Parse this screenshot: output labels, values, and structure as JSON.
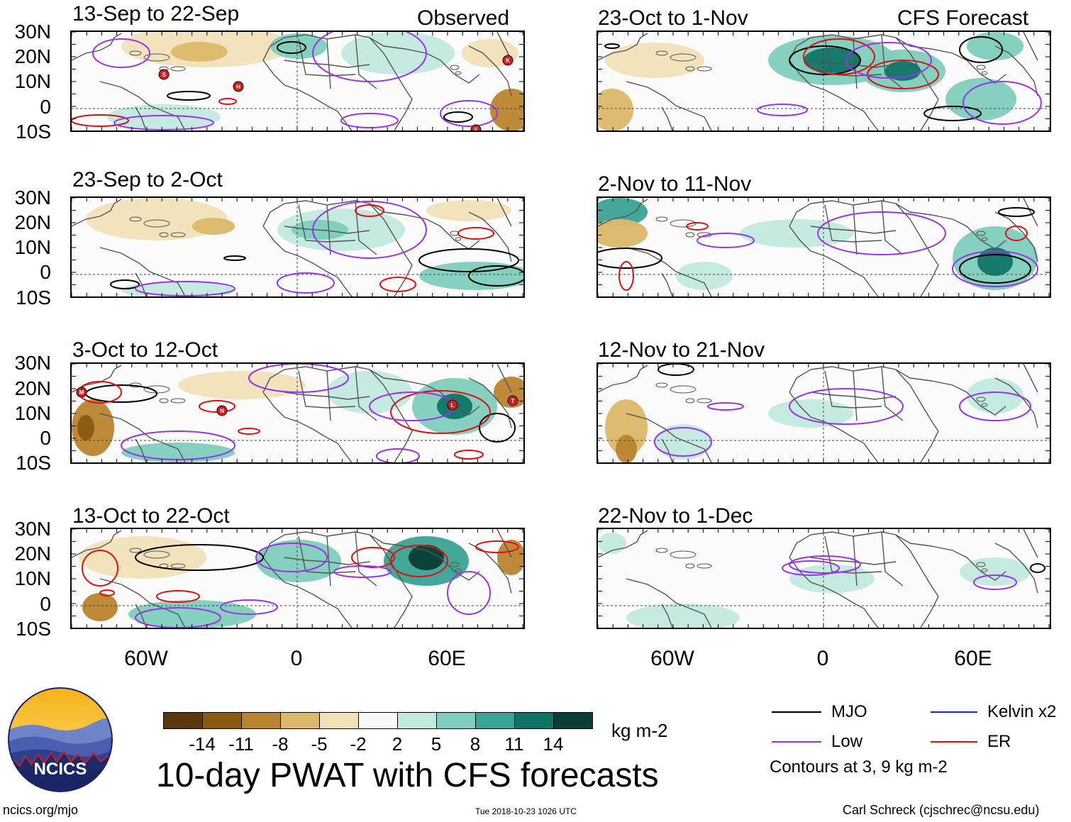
{
  "title": "10-day PWAT with CFS forecasts",
  "footer": {
    "url": "ncics.org/mjo",
    "timestamp": "Tue 2018-10-23 1026 UTC",
    "credit": "Carl Schreck (cjschrec@ncsu.edu)"
  },
  "logo": {
    "text": "NCICS"
  },
  "columns": {
    "observed_label": "Observed",
    "forecast_label": "CFS Forecast"
  },
  "lat_labels": [
    "30N",
    "20N",
    "10N",
    "0",
    "10S"
  ],
  "lon_labels": [
    "60W",
    "0",
    "60E"
  ],
  "panels_observed": [
    {
      "period": "13-Sep to 22-Sep"
    },
    {
      "period": "23-Sep to 2-Oct"
    },
    {
      "period": "3-Oct to 12-Oct"
    },
    {
      "period": "13-Oct to 22-Oct"
    }
  ],
  "panels_forecast": [
    {
      "period": "23-Oct to 1-Nov"
    },
    {
      "period": "2-Nov to 11-Nov"
    },
    {
      "period": "12-Nov to 21-Nov"
    },
    {
      "period": "22-Nov to 1-Dec"
    }
  ],
  "colorbar": {
    "unit": "kg m-2",
    "tick_labels": [
      "-14",
      "-11",
      "-8",
      "-5",
      "-2",
      "2",
      "5",
      "8",
      "11",
      "14"
    ],
    "colors": [
      "#5a3a0c",
      "#8a5a12",
      "#b8842e",
      "#dbb86a",
      "#f2e2b8",
      "#f7f7f7",
      "#c2e9e0",
      "#7fcdbd",
      "#3aa394",
      "#0f7466",
      "#0a3d34"
    ]
  },
  "legend": {
    "items": [
      {
        "label": "MJO",
        "color": "#000000"
      },
      {
        "label": "Kelvin x2",
        "color": "#2222cc"
      },
      {
        "label": "Low",
        "color": "#9933ee"
      },
      {
        "label": "ER",
        "color": "#dd1111"
      }
    ],
    "note": "Contours at 3, 9 kg m-2"
  },
  "storm_markers": {
    "p0": [
      "S",
      "H",
      "K",
      "E"
    ],
    "p2": [
      "M",
      "N",
      "L",
      "T"
    ]
  }
}
